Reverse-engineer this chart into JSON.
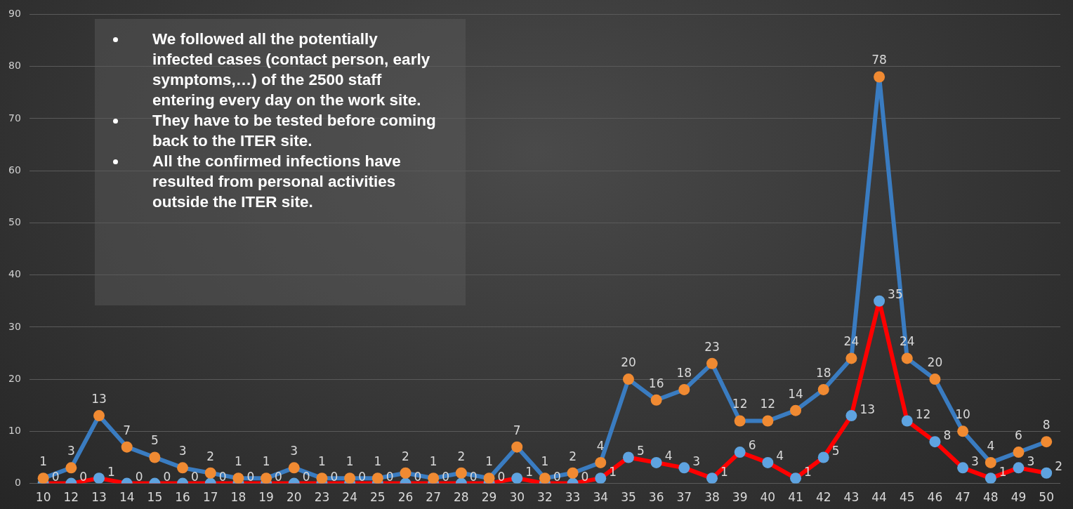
{
  "chart_data": {
    "type": "line",
    "categories": [
      "10",
      "12",
      "13",
      "14",
      "15",
      "16",
      "17",
      "18",
      "19",
      "20",
      "23",
      "24",
      "25",
      "26",
      "27",
      "28",
      "29",
      "30",
      "32",
      "33",
      "34",
      "35",
      "36",
      "37",
      "38",
      "39",
      "40",
      "41",
      "42",
      "43",
      "44",
      "45",
      "46",
      "47",
      "48",
      "49",
      "50"
    ],
    "series": [
      {
        "color": "#3a7cc1",
        "values": [
          1,
          3,
          13,
          7,
          5,
          3,
          2,
          1,
          1,
          3,
          1,
          1,
          1,
          2,
          1,
          2,
          1,
          7,
          1,
          2,
          4,
          20,
          16,
          18,
          23,
          12,
          12,
          14,
          18,
          24,
          78,
          24,
          20,
          10,
          4,
          6,
          8
        ]
      },
      {
        "color": "#ff0000",
        "values": [
          0,
          0,
          1,
          0,
          0,
          0,
          0,
          0,
          0,
          0,
          0,
          0,
          0,
          0,
          0,
          0,
          0,
          1,
          0,
          0,
          1,
          5,
          4,
          3,
          1,
          6,
          4,
          1,
          5,
          13,
          35,
          12,
          8,
          3,
          1,
          3,
          2
        ]
      }
    ],
    "ylim": [
      0,
      90
    ],
    "yticks": [
      0,
      10,
      20,
      30,
      40,
      50,
      60,
      70,
      80,
      90
    ],
    "grid": "y",
    "legend": false,
    "marker": "circle",
    "line_style": "solid",
    "data_labels": true,
    "annotations": [
      "We followed all the potentially infected cases (contact person, early symptoms,…) of the 2500 staff entering every day on the work site.",
      "They have to be tested before coming back to the ITER site.",
      "All the confirmed infections have resulted from personal activities outside the ITER site."
    ]
  }
}
